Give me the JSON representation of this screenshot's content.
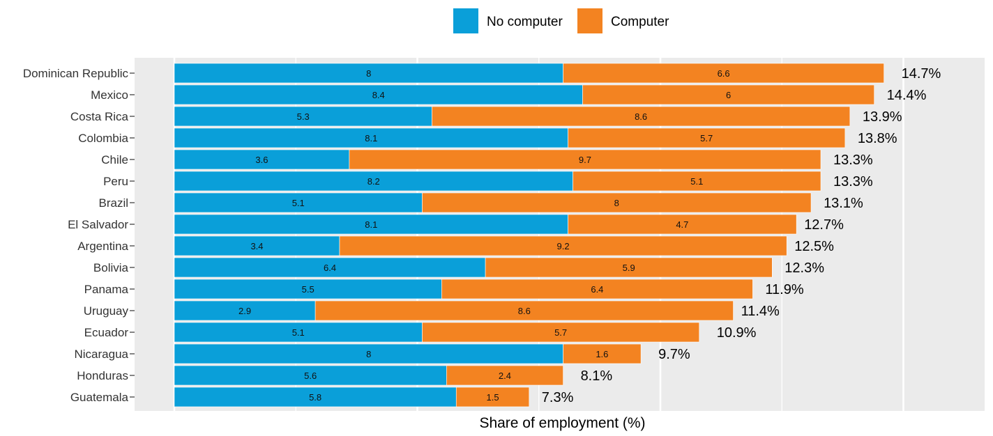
{
  "chart_data": {
    "type": "bar",
    "orientation": "horizontal",
    "stacked": true,
    "title": "",
    "xlabel": "Share of employment (%)",
    "ylabel": "",
    "xlim": [
      0,
      16.5
    ],
    "grid": true,
    "legend_position": "top",
    "categories": [
      "Dominican Republic",
      "Mexico",
      "Costa Rica",
      "Colombia",
      "Chile",
      "Peru",
      "Brazil",
      "El Salvador",
      "Argentina",
      "Bolivia",
      "Panama",
      "Uruguay",
      "Ecuador",
      "Nicaragua",
      "Honduras",
      "Guatemala"
    ],
    "series": [
      {
        "name": "No computer",
        "color": "#0a9fd9",
        "values": [
          8,
          8.4,
          5.3,
          8.1,
          3.6,
          8.2,
          5.1,
          8.1,
          3.4,
          6.4,
          5.5,
          2.9,
          5.1,
          8,
          5.6,
          5.8
        ],
        "labels": [
          "8",
          "8.4",
          "5.3",
          "8.1",
          "3.6",
          "8.2",
          "5.1",
          "8.1",
          "3.4",
          "6.4",
          "5.5",
          "2.9",
          "5.1",
          "8",
          "5.6",
          "5.8"
        ]
      },
      {
        "name": "Computer",
        "color": "#f38321",
        "values": [
          6.6,
          6,
          8.6,
          5.7,
          9.7,
          5.1,
          8,
          4.7,
          9.2,
          5.9,
          6.4,
          8.6,
          5.7,
          1.6,
          2.4,
          1.5
        ],
        "labels": [
          "6.6",
          "6",
          "8.6",
          "5.7",
          "9.7",
          "5.1",
          "8",
          "4.7",
          "9.2",
          "5.9",
          "6.4",
          "8.6",
          "5.7",
          "1.6",
          "2.4",
          "1.5"
        ]
      }
    ],
    "totals": [
      14.7,
      14.4,
      13.9,
      13.8,
      13.3,
      13.3,
      13.1,
      12.7,
      12.5,
      12.3,
      11.9,
      11.4,
      10.9,
      9.7,
      8.1,
      7.3
    ],
    "total_labels": [
      "14.7%",
      "14.4%",
      "13.9%",
      "13.8%",
      "13.3%",
      "13.3%",
      "13.1%",
      "12.7%",
      "12.5%",
      "12.3%",
      "11.9%",
      "11.4%",
      "10.9%",
      "9.7%",
      "8.1%",
      "7.3%"
    ]
  }
}
